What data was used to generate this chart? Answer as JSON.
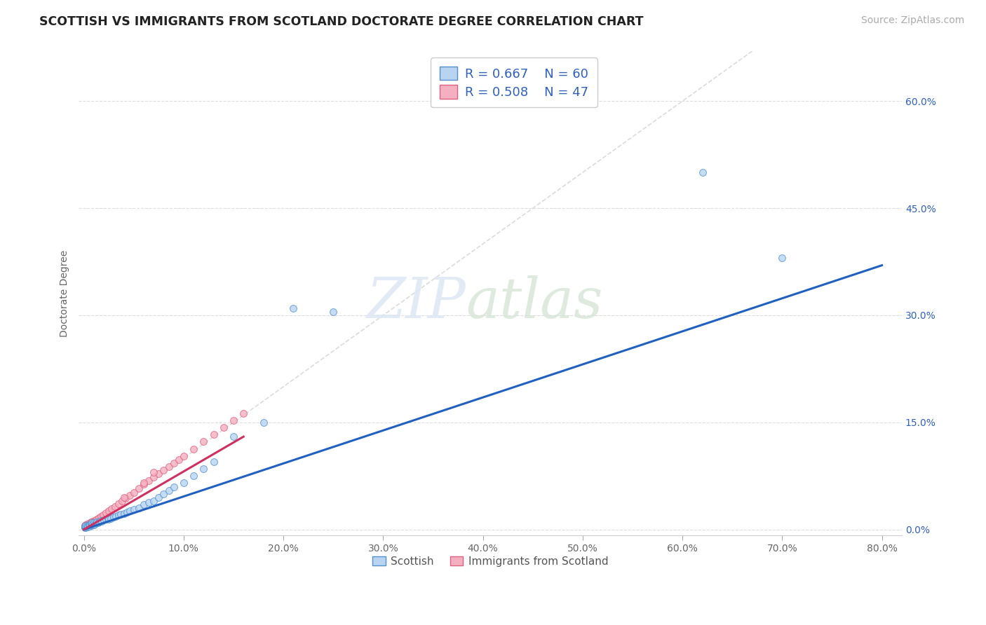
{
  "title": "SCOTTISH VS IMMIGRANTS FROM SCOTLAND DOCTORATE DEGREE CORRELATION CHART",
  "source": "Source: ZipAtlas.com",
  "ylabel": "Doctorate Degree",
  "xlim": [
    -0.005,
    0.82
  ],
  "ylim": [
    -0.008,
    0.67
  ],
  "xticks": [
    0.0,
    0.1,
    0.2,
    0.3,
    0.4,
    0.5,
    0.6,
    0.7,
    0.8
  ],
  "yticks": [
    0.0,
    0.15,
    0.3,
    0.45,
    0.6
  ],
  "xticklabels": [
    "0.0%",
    "10.0%",
    "20.0%",
    "30.0%",
    "40.0%",
    "50.0%",
    "60.0%",
    "70.0%",
    "80.0%"
  ],
  "yticklabels_right": [
    "0.0%",
    "15.0%",
    "30.0%",
    "45.0%",
    "60.0%"
  ],
  "watermark_zip": "ZIP",
  "watermark_atlas": "atlas",
  "legend_label1": "Scottish",
  "legend_label2": "Immigrants from Scotland",
  "color_scottish_face": "#b8d4f0",
  "color_scottish_edge": "#5090d0",
  "color_immigrants_face": "#f4b0c0",
  "color_immigrants_edge": "#e06080",
  "color_line_scottish": "#2060c0",
  "color_line_immigrants": "#d03060",
  "color_diag_line": "#cccccc",
  "color_text_blue": "#3060c0",
  "color_grid": "#dddddd",
  "background_color": "#ffffff",
  "scatter_size": 50,
  "title_fontsize": 12.5,
  "axis_label_fontsize": 10,
  "tick_fontsize": 10,
  "source_fontsize": 10,
  "legend_fontsize": 13,
  "scottish_x": [
    0.001,
    0.001,
    0.001,
    0.002,
    0.002,
    0.002,
    0.003,
    0.003,
    0.004,
    0.004,
    0.005,
    0.005,
    0.006,
    0.006,
    0.007,
    0.007,
    0.008,
    0.008,
    0.009,
    0.01,
    0.01,
    0.011,
    0.012,
    0.013,
    0.014,
    0.015,
    0.016,
    0.017,
    0.018,
    0.02,
    0.022,
    0.024,
    0.025,
    0.027,
    0.03,
    0.032,
    0.035,
    0.037,
    0.04,
    0.043,
    0.046,
    0.05,
    0.055,
    0.06,
    0.065,
    0.07,
    0.075,
    0.08,
    0.085,
    0.09,
    0.1,
    0.11,
    0.12,
    0.13,
    0.15,
    0.18,
    0.21,
    0.25,
    0.62,
    0.7
  ],
  "scottish_y": [
    0.003,
    0.004,
    0.005,
    0.003,
    0.004,
    0.006,
    0.005,
    0.006,
    0.004,
    0.005,
    0.006,
    0.007,
    0.005,
    0.007,
    0.006,
    0.008,
    0.007,
    0.009,
    0.008,
    0.007,
    0.009,
    0.008,
    0.009,
    0.01,
    0.009,
    0.01,
    0.011,
    0.012,
    0.011,
    0.013,
    0.014,
    0.015,
    0.014,
    0.015,
    0.017,
    0.018,
    0.02,
    0.021,
    0.022,
    0.024,
    0.026,
    0.028,
    0.03,
    0.035,
    0.038,
    0.04,
    0.045,
    0.05,
    0.055,
    0.06,
    0.065,
    0.075,
    0.085,
    0.095,
    0.13,
    0.15,
    0.31,
    0.305,
    0.5,
    0.38
  ],
  "immigrants_x": [
    0.001,
    0.001,
    0.002,
    0.002,
    0.003,
    0.003,
    0.004,
    0.005,
    0.006,
    0.007,
    0.008,
    0.009,
    0.01,
    0.011,
    0.012,
    0.013,
    0.015,
    0.017,
    0.019,
    0.022,
    0.025,
    0.028,
    0.031,
    0.035,
    0.038,
    0.042,
    0.046,
    0.05,
    0.055,
    0.06,
    0.065,
    0.07,
    0.075,
    0.08,
    0.085,
    0.09,
    0.095,
    0.1,
    0.11,
    0.12,
    0.13,
    0.14,
    0.15,
    0.16,
    0.04,
    0.06,
    0.07
  ],
  "immigrants_y": [
    0.005,
    0.006,
    0.004,
    0.007,
    0.006,
    0.008,
    0.007,
    0.008,
    0.009,
    0.01,
    0.009,
    0.011,
    0.01,
    0.012,
    0.013,
    0.014,
    0.016,
    0.018,
    0.02,
    0.023,
    0.026,
    0.029,
    0.032,
    0.036,
    0.04,
    0.044,
    0.048,
    0.052,
    0.058,
    0.063,
    0.068,
    0.073,
    0.078,
    0.083,
    0.088,
    0.093,
    0.098,
    0.103,
    0.113,
    0.123,
    0.133,
    0.143,
    0.153,
    0.163,
    0.045,
    0.065,
    0.08
  ],
  "blue_line_x": [
    0.0,
    0.8
  ],
  "blue_line_y": [
    0.0,
    0.37
  ],
  "pink_line_x": [
    0.0,
    0.16
  ],
  "pink_line_y": [
    0.0,
    0.13
  ]
}
